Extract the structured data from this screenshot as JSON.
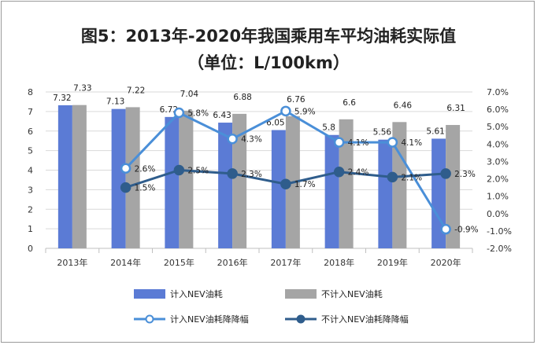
{
  "titles": {
    "line1": "图5：2013年-2020年我国乘用车平均油耗实际值",
    "line2": "（单位：L/100km）"
  },
  "chart_data": {
    "type": "bar",
    "categories": [
      "2013年",
      "2014年",
      "2015年",
      "2016年",
      "2017年",
      "2018年",
      "2019年",
      "2020年"
    ],
    "bar_series": [
      {
        "name": "计入NEV油耗",
        "color": "#5b7bd5",
        "values": [
          7.32,
          7.13,
          6.72,
          6.43,
          6.05,
          5.8,
          5.56,
          5.61
        ],
        "labels": [
          "7.32",
          "7.13",
          "6.72",
          "6.43",
          "6.05",
          "5.8",
          "5.56",
          "5.61"
        ]
      },
      {
        "name": "不计入NEV油耗",
        "color": "#a5a5a5",
        "values": [
          7.33,
          7.22,
          7.04,
          6.88,
          6.76,
          6.6,
          6.46,
          6.31
        ],
        "labels": [
          "7.33",
          "7.22",
          "7.04",
          "6.88",
          "6.76",
          "6.6",
          "6.46",
          "6.31"
        ]
      }
    ],
    "line_series": [
      {
        "name": "计入NEV油耗降降幅",
        "color": "#4a8fd8",
        "values": [
          null,
          2.6,
          5.8,
          4.3,
          5.9,
          4.1,
          4.1,
          -0.9
        ],
        "labels": [
          "",
          "2.6%",
          "5.8%",
          "4.3%",
          "5.9%",
          "4.1%",
          "4.1%",
          "-0.9%"
        ]
      },
      {
        "name": "不计入NEV油耗降降幅",
        "color": "#2f5d8c",
        "values": [
          null,
          1.5,
          2.5,
          2.3,
          1.7,
          2.4,
          2.1,
          2.3
        ],
        "labels": [
          "",
          "1.5%",
          "2.5%",
          "2.3%",
          "1.7%",
          "2.4%",
          "2.1%",
          "2.3%"
        ]
      }
    ],
    "y_left": {
      "min": 0,
      "max": 8,
      "ticks": [
        "0",
        "1",
        "2",
        "3",
        "4",
        "5",
        "6",
        "7",
        "8"
      ]
    },
    "y_right": {
      "min": -2,
      "max": 7,
      "ticks": [
        "-2.0%",
        "-1.0%",
        "0.0%",
        "1.0%",
        "2.0%",
        "3.0%",
        "4.0%",
        "5.0%",
        "6.0%",
        "7.0%"
      ]
    },
    "grid": true,
    "legend": "bottom"
  }
}
